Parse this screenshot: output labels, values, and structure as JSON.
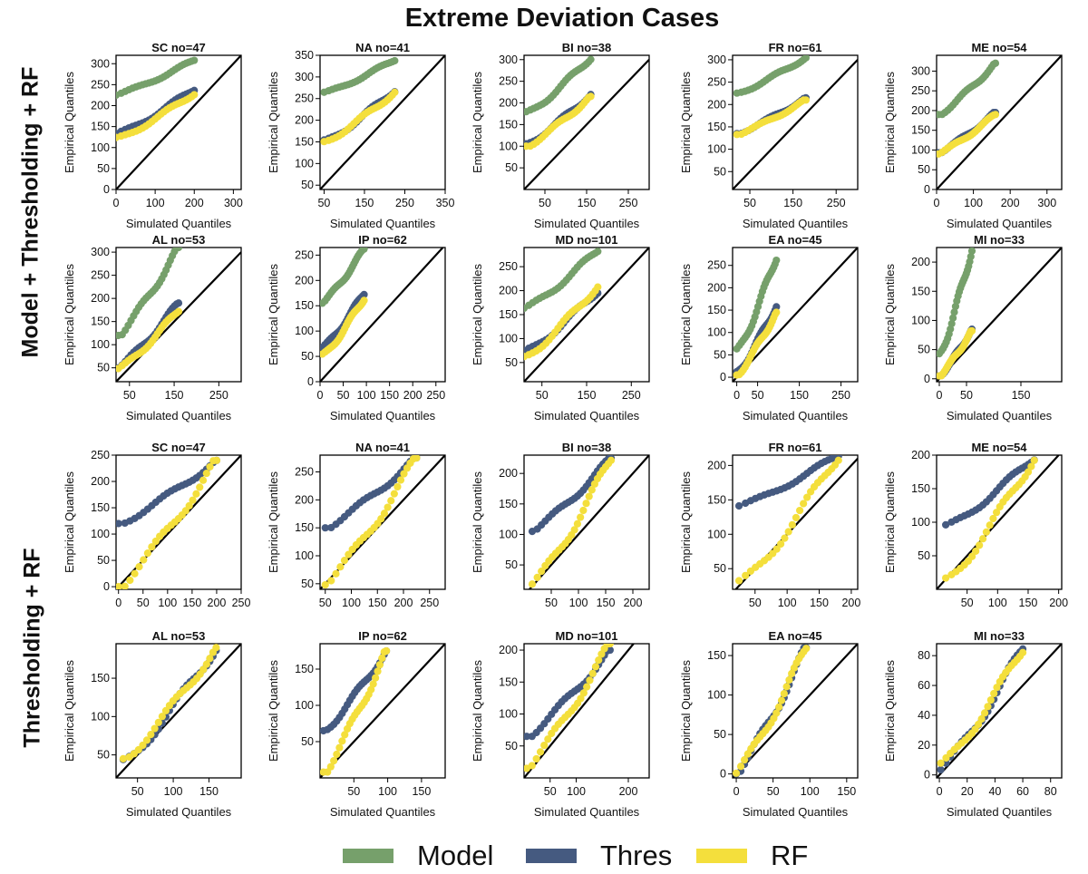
{
  "figure": {
    "title": "Extreme Deviation Cases",
    "row_labels": [
      "Model + Thresholding + RF",
      "Thresholding + RF"
    ]
  },
  "legend": [
    {
      "label": "Model",
      "color": "#76a06b"
    },
    {
      "label": "Thres",
      "color": "#455a80"
    },
    {
      "label": "RF",
      "color": "#f4df3c"
    }
  ],
  "chart_data": [
    {
      "type": "scatter",
      "title": "SC  no=47",
      "xlabel": "Simulated Quantiles",
      "ylabel": "Empirical Quantiles",
      "xlim": [
        0,
        320
      ],
      "ylim": [
        0,
        320
      ],
      "xticks": [
        0,
        100,
        200,
        300
      ],
      "yticks": [
        0,
        50,
        100,
        150,
        200,
        250,
        300
      ],
      "reference_line": "y=x",
      "series": [
        {
          "name": "Model",
          "start": [
            0,
            225
          ],
          "end": [
            200,
            308
          ]
        },
        {
          "name": "Thres",
          "start": [
            0,
            130
          ],
          "end": [
            200,
            240
          ]
        },
        {
          "name": "RF",
          "start": [
            0,
            120
          ],
          "end": [
            200,
            230
          ]
        }
      ]
    },
    {
      "type": "scatter",
      "title": "NA  no=41",
      "xlabel": "Simulated Quantiles",
      "ylabel": "Empirical Quantiles",
      "xlim": [
        40,
        350
      ],
      "ylim": [
        40,
        350
      ],
      "xticks": [
        50,
        150,
        250,
        350
      ],
      "yticks": [
        50,
        100,
        150,
        200,
        250,
        300,
        350
      ],
      "reference_line": "y=x",
      "series": [
        {
          "name": "Model",
          "start": [
            50,
            262
          ],
          "end": [
            225,
            340
          ]
        },
        {
          "name": "Thres",
          "start": [
            50,
            150
          ],
          "end": [
            225,
            270
          ]
        },
        {
          "name": "RF",
          "start": [
            50,
            150
          ],
          "end": [
            225,
            265
          ]
        }
      ]
    },
    {
      "type": "scatter",
      "title": "BI  no=38",
      "xlabel": "Simulated Quantiles",
      "ylabel": "Empirical Quantiles",
      "xlim": [
        0,
        300
      ],
      "ylim": [
        0,
        310
      ],
      "xticks": [
        50,
        150,
        250
      ],
      "yticks": [
        50,
        100,
        150,
        200,
        250,
        300
      ],
      "reference_line": "y=x",
      "series": [
        {
          "name": "Model",
          "start": [
            5,
            175
          ],
          "end": [
            160,
            305
          ]
        },
        {
          "name": "Thres",
          "start": [
            5,
            105
          ],
          "end": [
            160,
            220
          ]
        },
        {
          "name": "RF",
          "start": [
            5,
            100
          ],
          "end": [
            160,
            215
          ]
        }
      ]
    },
    {
      "type": "scatter",
      "title": "FR  no=61",
      "xlabel": "Simulated Quantiles",
      "ylabel": "Empirical Quantiles",
      "xlim": [
        10,
        300
      ],
      "ylim": [
        10,
        310
      ],
      "xticks": [
        50,
        150,
        250
      ],
      "yticks": [
        50,
        100,
        150,
        200,
        250,
        300
      ],
      "reference_line": "y=x",
      "series": [
        {
          "name": "Model",
          "start": [
            20,
            225
          ],
          "end": [
            180,
            305
          ]
        },
        {
          "name": "Thres",
          "start": [
            20,
            135
          ],
          "end": [
            180,
            215
          ]
        },
        {
          "name": "RF",
          "start": [
            20,
            133
          ],
          "end": [
            180,
            210
          ]
        }
      ]
    },
    {
      "type": "scatter",
      "title": "ME  no=54",
      "xlabel": "Simulated Quantiles",
      "ylabel": "Empirical Quantiles",
      "xlim": [
        0,
        340
      ],
      "ylim": [
        0,
        340
      ],
      "xticks": [
        0,
        100,
        200,
        300
      ],
      "yticks": [
        0,
        50,
        100,
        150,
        200,
        250,
        300
      ],
      "reference_line": "y=x",
      "series": [
        {
          "name": "Model",
          "start": [
            5,
            190
          ],
          "end": [
            160,
            320
          ]
        },
        {
          "name": "Thres",
          "start": [
            5,
            93
          ],
          "end": [
            160,
            195
          ]
        },
        {
          "name": "RF",
          "start": [
            5,
            90
          ],
          "end": [
            160,
            190
          ]
        }
      ]
    },
    {
      "type": "scatter",
      "title": "AL  no=53",
      "xlabel": "Simulated Quantiles",
      "ylabel": "Empirical Quantiles",
      "xlim": [
        20,
        300
      ],
      "ylim": [
        20,
        310
      ],
      "xticks": [
        50,
        150,
        250
      ],
      "yticks": [
        50,
        100,
        150,
        200,
        250,
        300
      ],
      "reference_line": "y=x",
      "series": [
        {
          "name": "Model",
          "start": [
            25,
            120
          ],
          "end": [
            160,
            310
          ]
        },
        {
          "name": "Thres",
          "start": [
            25,
            50
          ],
          "end": [
            160,
            190
          ]
        },
        {
          "name": "RF",
          "start": [
            25,
            45
          ],
          "end": [
            160,
            175
          ]
        }
      ]
    },
    {
      "type": "scatter",
      "title": "IP  no=62",
      "xlabel": "Simulated Quantiles",
      "ylabel": "Empirical Quantiles",
      "xlim": [
        0,
        270
      ],
      "ylim": [
        0,
        265
      ],
      "xticks": [
        0,
        50,
        100,
        150,
        200,
        250
      ],
      "yticks": [
        0,
        50,
        100,
        150,
        200,
        250
      ],
      "reference_line": "y=x",
      "series": [
        {
          "name": "Model",
          "start": [
            5,
            155
          ],
          "end": [
            95,
            262
          ]
        },
        {
          "name": "Thres",
          "start": [
            5,
            65
          ],
          "end": [
            95,
            175
          ]
        },
        {
          "name": "RF",
          "start": [
            5,
            50
          ],
          "end": [
            95,
            165
          ]
        }
      ]
    },
    {
      "type": "scatter",
      "title": "MD  no=101",
      "xlabel": "Simulated Quantiles",
      "ylabel": "Empirical Quantiles",
      "xlim": [
        10,
        290
      ],
      "ylim": [
        10,
        290
      ],
      "xticks": [
        50,
        150,
        250
      ],
      "yticks": [
        50,
        100,
        150,
        200,
        250
      ],
      "reference_line": "y=x",
      "series": [
        {
          "name": "Model",
          "start": [
            10,
            160
          ],
          "end": [
            175,
            285
          ]
        },
        {
          "name": "Thres",
          "start": [
            10,
            70
          ],
          "end": [
            175,
            200
          ]
        },
        {
          "name": "RF",
          "start": [
            10,
            60
          ],
          "end": [
            175,
            210
          ]
        }
      ]
    },
    {
      "type": "scatter",
      "title": "EA  no=45",
      "xlabel": "Simulated Quantiles",
      "ylabel": "Empirical Quantiles",
      "xlim": [
        -10,
        290
      ],
      "ylim": [
        -10,
        290
      ],
      "xticks": [
        0,
        50,
        150,
        250
      ],
      "yticks": [
        0,
        50,
        100,
        150,
        200,
        250
      ],
      "reference_line": "y=x",
      "series": [
        {
          "name": "Model",
          "start": [
            0,
            55
          ],
          "end": [
            95,
            270
          ]
        },
        {
          "name": "Thres",
          "start": [
            0,
            10
          ],
          "end": [
            95,
            160
          ]
        },
        {
          "name": "RF",
          "start": [
            0,
            5
          ],
          "end": [
            95,
            145
          ]
        }
      ]
    },
    {
      "type": "scatter",
      "title": "MI  no=33",
      "xlabel": "Simulated Quantiles",
      "ylabel": "Empirical Quantiles",
      "xlim": [
        -5,
        225
      ],
      "ylim": [
        -5,
        225
      ],
      "xticks": [
        0,
        50,
        150
      ],
      "yticks": [
        0,
        50,
        100,
        150,
        200
      ],
      "reference_line": "y=x",
      "series": [
        {
          "name": "Model",
          "start": [
            0,
            40
          ],
          "end": [
            60,
            222
          ]
        },
        {
          "name": "Thres",
          "start": [
            0,
            5
          ],
          "end": [
            60,
            85
          ]
        },
        {
          "name": "RF",
          "start": [
            0,
            5
          ],
          "end": [
            60,
            82
          ]
        }
      ]
    },
    {
      "type": "scatter",
      "title": "SC  no=47",
      "xlabel": "",
      "ylabel": "Empirical Quantiles",
      "xlim": [
        -5,
        250
      ],
      "ylim": [
        -5,
        250
      ],
      "xticks": [
        0,
        50,
        100,
        150,
        200,
        250
      ],
      "yticks": [
        0,
        50,
        100,
        150,
        200,
        250
      ],
      "reference_line": "y=x",
      "series": [
        {
          "name": "Thres",
          "start": [
            0,
            120
          ],
          "end": [
            200,
            240
          ]
        },
        {
          "name": "RF",
          "start": [
            0,
            0
          ],
          "end": [
            200,
            240
          ]
        }
      ]
    },
    {
      "type": "scatter",
      "title": "NA  no=41",
      "xlabel": "",
      "ylabel": "Empirical Quantiles",
      "xlim": [
        40,
        280
      ],
      "ylim": [
        40,
        280
      ],
      "xticks": [
        50,
        100,
        150,
        200,
        250
      ],
      "yticks": [
        50,
        100,
        150,
        200,
        250
      ],
      "reference_line": "y=x",
      "series": [
        {
          "name": "Thres",
          "start": [
            50,
            150
          ],
          "end": [
            225,
            275
          ]
        },
        {
          "name": "RF",
          "start": [
            50,
            48
          ],
          "end": [
            225,
            275
          ]
        }
      ]
    },
    {
      "type": "scatter",
      "title": "BI  no=38",
      "xlabel": "",
      "ylabel": "Empirical Quantiles",
      "xlim": [
        0,
        230
      ],
      "ylim": [
        10,
        230
      ],
      "xticks": [
        50,
        100,
        150,
        200
      ],
      "yticks": [
        50,
        100,
        150,
        200
      ],
      "reference_line": "y=x",
      "series": [
        {
          "name": "Thres",
          "start": [
            15,
            105
          ],
          "end": [
            160,
            225
          ]
        },
        {
          "name": "RF",
          "start": [
            15,
            15
          ],
          "end": [
            160,
            225
          ]
        }
      ]
    },
    {
      "type": "scatter",
      "title": "FR  no=61",
      "xlabel": "",
      "ylabel": "Empirical Quantiles",
      "xlim": [
        15,
        210
      ],
      "ylim": [
        20,
        215
      ],
      "xticks": [
        50,
        100,
        150,
        200
      ],
      "yticks": [
        50,
        100,
        150,
        200
      ],
      "reference_line": "y=x",
      "series": [
        {
          "name": "Thres",
          "start": [
            25,
            140
          ],
          "end": [
            180,
            215
          ]
        },
        {
          "name": "RF",
          "start": [
            25,
            25
          ],
          "end": [
            180,
            215
          ]
        }
      ]
    },
    {
      "type": "scatter",
      "title": "ME  no=54",
      "xlabel": "",
      "ylabel": "Empirical Quantiles",
      "xlim": [
        0,
        205
      ],
      "ylim": [
        0,
        200
      ],
      "xticks": [
        50,
        100,
        150,
        200
      ],
      "yticks": [
        50,
        100,
        150,
        200
      ],
      "reference_line": "y=x",
      "series": [
        {
          "name": "Thres",
          "start": [
            15,
            92
          ],
          "end": [
            160,
            197
          ]
        },
        {
          "name": "RF",
          "start": [
            15,
            12
          ],
          "end": [
            160,
            197
          ]
        }
      ]
    },
    {
      "type": "scatter",
      "title": "AL  no=53",
      "xlabel": "Simulated Quantiles",
      "ylabel": "Empirical Quantiles",
      "xlim": [
        20,
        195
      ],
      "ylim": [
        20,
        195
      ],
      "xticks": [
        50,
        100,
        150
      ],
      "yticks": [
        50,
        100,
        150
      ],
      "reference_line": "y=x",
      "series": [
        {
          "name": "Thres",
          "start": [
            30,
            40
          ],
          "end": [
            160,
            190
          ]
        },
        {
          "name": "RF",
          "start": [
            30,
            45
          ],
          "end": [
            160,
            190
          ]
        }
      ]
    },
    {
      "type": "scatter",
      "title": "IP  no=62",
      "xlabel": "Simulated Quantiles",
      "ylabel": "Empirical Quantiles",
      "xlim": [
        0,
        185
      ],
      "ylim": [
        0,
        185
      ],
      "xticks": [
        50,
        100,
        150
      ],
      "yticks": [
        50,
        100,
        150
      ],
      "reference_line": "y=x",
      "series": [
        {
          "name": "Thres",
          "start": [
            5,
            65
          ],
          "end": [
            98,
            175
          ]
        },
        {
          "name": "RF",
          "start": [
            5,
            8
          ],
          "end": [
            98,
            175
          ]
        }
      ]
    },
    {
      "type": "scatter",
      "title": "MD  no=101",
      "xlabel": "Simulated Quantiles",
      "ylabel": "Empirical Quantiles",
      "xlim": [
        0,
        240
      ],
      "ylim": [
        0,
        210
      ],
      "xticks": [
        50,
        100,
        200
      ],
      "yticks": [
        50,
        100,
        150,
        200
      ],
      "reference_line": "y=x",
      "series": [
        {
          "name": "Thres",
          "start": [
            5,
            65
          ],
          "end": [
            165,
            200
          ]
        },
        {
          "name": "RF",
          "start": [
            5,
            15
          ],
          "end": [
            165,
            210
          ]
        }
      ]
    },
    {
      "type": "scatter",
      "title": "EA  no=45",
      "xlabel": "Simulated Quantiles",
      "ylabel": "Empirical Quantiles",
      "xlim": [
        -5,
        165
      ],
      "ylim": [
        -5,
        165
      ],
      "xticks": [
        0,
        50,
        100,
        150
      ],
      "yticks": [
        0,
        50,
        100,
        150
      ],
      "reference_line": "y=x",
      "series": [
        {
          "name": "Thres",
          "start": [
            0,
            0
          ],
          "end": [
            95,
            160
          ]
        },
        {
          "name": "RF",
          "start": [
            0,
            0
          ],
          "end": [
            95,
            160
          ]
        }
      ]
    },
    {
      "type": "scatter",
      "title": "MI  no=33",
      "xlabel": "Simulated Quantiles",
      "ylabel": "Empirical Quantiles",
      "xlim": [
        -2,
        88
      ],
      "ylim": [
        -2,
        88
      ],
      "xticks": [
        0,
        20,
        40,
        60,
        80
      ],
      "yticks": [
        0,
        20,
        40,
        60,
        80
      ],
      "reference_line": "y=x",
      "series": [
        {
          "name": "Thres",
          "start": [
            1,
            3
          ],
          "end": [
            60,
            85
          ]
        },
        {
          "name": "RF",
          "start": [
            1,
            5
          ],
          "end": [
            60,
            85
          ]
        }
      ]
    }
  ]
}
